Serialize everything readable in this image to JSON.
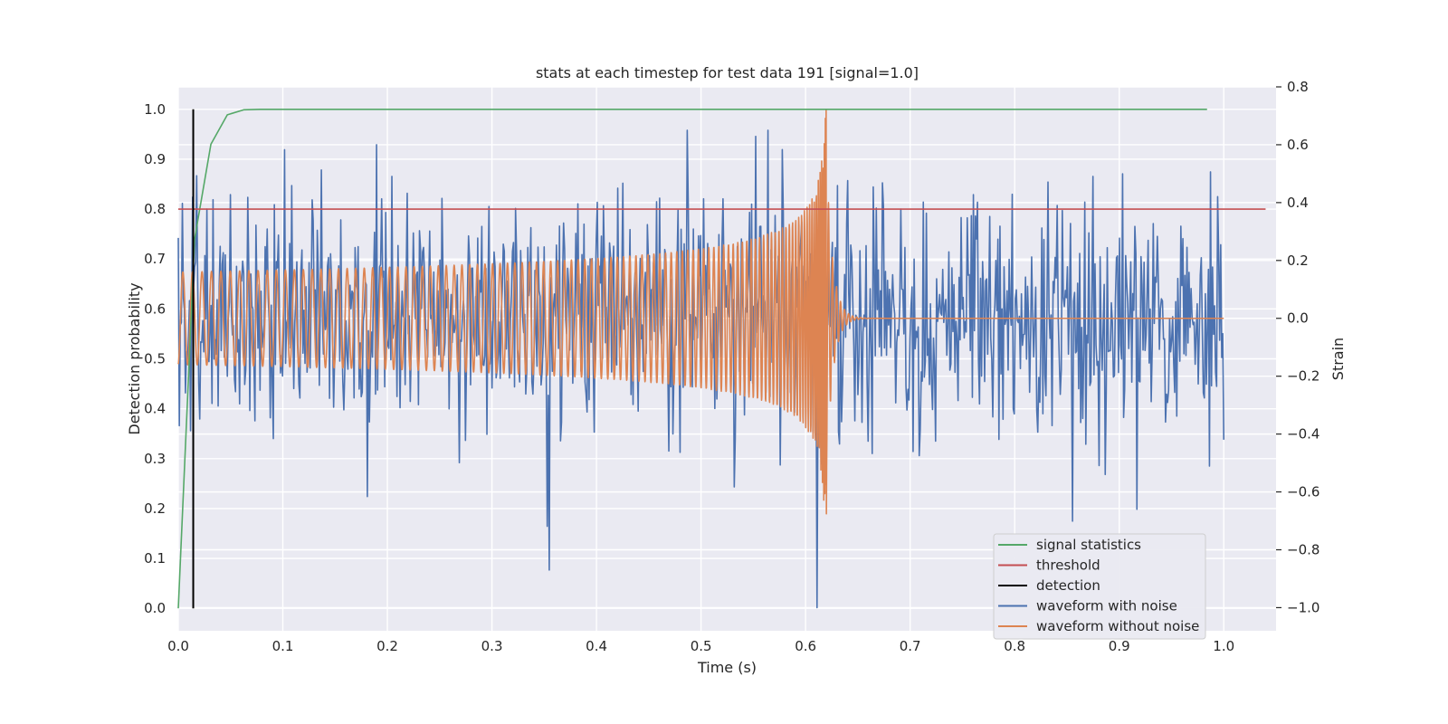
{
  "chart_data": {
    "type": "line",
    "title": "stats at each timestep for test data 191 [signal=1.0]",
    "xlabel": "Time (s)",
    "ylabel_left": "Detection probability",
    "ylabel_right": "Strain",
    "xlim": [
      0.0,
      1.05
    ],
    "ylim_left": [
      -0.045,
      1.045
    ],
    "ylim_right": [
      -1.08,
      0.8
    ],
    "x_ticks": [
      "0.0",
      "0.1",
      "0.2",
      "0.3",
      "0.4",
      "0.5",
      "0.6",
      "0.7",
      "0.8",
      "0.9",
      "1.0"
    ],
    "x_tick_values": [
      0.0,
      0.1,
      0.2,
      0.3,
      0.4,
      0.5,
      0.6,
      0.7,
      0.8,
      0.9,
      1.0
    ],
    "y_left_ticks": [
      "0.0",
      "0.1",
      "0.2",
      "0.3",
      "0.4",
      "0.5",
      "0.6",
      "0.7",
      "0.8",
      "0.9",
      "1.0"
    ],
    "y_left_tick_values": [
      0.0,
      0.1,
      0.2,
      0.3,
      0.4,
      0.5,
      0.6,
      0.7,
      0.8,
      0.9,
      1.0
    ],
    "y_right_ticks": [
      "−1.0",
      "−0.8",
      "−0.6",
      "−0.4",
      "−0.2",
      "0.0",
      "0.2",
      "0.4",
      "0.6",
      "0.8"
    ],
    "y_right_tick_values": [
      -1.0,
      -0.8,
      -0.6,
      -0.4,
      -0.2,
      0.0,
      0.2,
      0.4,
      0.6,
      0.8
    ],
    "grid": true,
    "legend_position": "bottom-right",
    "series": [
      {
        "name": "signal statistics",
        "axis": "left",
        "color": "#55a868",
        "x": [
          0.0,
          0.0156,
          0.0312,
          0.0469,
          0.0625,
          0.0781,
          0.1,
          0.2,
          0.4,
          0.6,
          0.8,
          0.984
        ],
        "y": [
          0.0,
          0.74,
          0.93,
          0.989,
          0.999,
          1.0,
          1.0,
          1.0,
          1.0,
          1.0,
          1.0,
          1.0
        ]
      },
      {
        "name": "threshold",
        "axis": "left",
        "color": "#c44e52",
        "x": [
          0.0,
          1.04
        ],
        "y": [
          0.8,
          0.8
        ]
      },
      {
        "name": "detection",
        "axis": "left",
        "color": "#000000",
        "x": [
          0.0143,
          0.0143
        ],
        "y": [
          0.0,
          1.0
        ]
      },
      {
        "name": "waveform with noise",
        "axis": "right",
        "color": "#4c72b0",
        "x_start": 0.0,
        "x_end": 1.0,
        "y_range": [
          -1.0,
          0.65
        ],
        "extremes": [
          {
            "x": 0.355,
            "y": -0.87
          },
          {
            "x": 0.611,
            "y": -1.0
          },
          {
            "x": 0.19,
            "y": 0.6
          },
          {
            "x": 0.487,
            "y": 0.65
          },
          {
            "x": 0.917,
            "y": -0.66
          }
        ]
      },
      {
        "name": "waveform without noise",
        "axis": "right",
        "color": "#dd8452",
        "x_start": 0.0,
        "x_end": 1.0,
        "description_values": {
          "early_amplitude": 0.16,
          "peak_time": 0.62,
          "peak_high": 0.72,
          "peak_low": -0.66,
          "post_merger_value": 0.0
        }
      }
    ]
  }
}
